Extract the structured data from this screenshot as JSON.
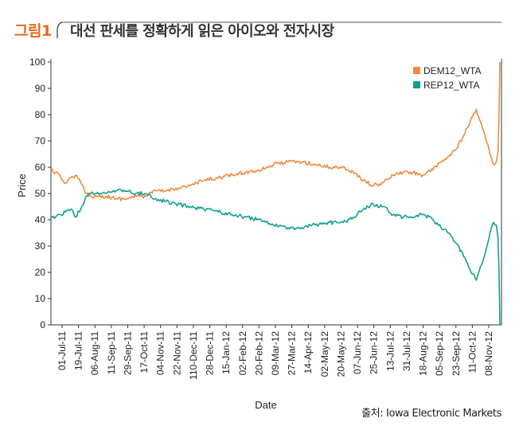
{
  "header": {
    "figure_label": "그림1",
    "title": "대선 판세를 정확하게 읽은 아이오와 전자시장"
  },
  "source": "출처: Iowa Electronic Markets",
  "colors": {
    "dem": "#f08a3e",
    "rep": "#12a08e",
    "accent": "#e8681f"
  },
  "chart_data": {
    "type": "line",
    "title": "",
    "xlabel": "Date",
    "ylabel": "Price",
    "ylim": [
      0,
      100
    ],
    "yticks": [
      0,
      10,
      20,
      30,
      40,
      50,
      60,
      70,
      80,
      90,
      100
    ],
    "xlim": [
      "2011-07-01",
      "2012-11-08"
    ],
    "xticks": [
      "01-Jul-11",
      "19-Jul-11",
      "06-Aug-11",
      "11-Sep-11",
      "29-Sep-11",
      "17-Oct-11",
      "04-Nov-11",
      "22-Nov-11",
      "110-Dec-11",
      "28-Dec-11",
      "15-Jan-12",
      "02-Feb-12",
      "20-Feb-12",
      "09-Mar-12",
      "27-Mar-12",
      "14-Apr-12",
      "02-May-12",
      "20-May-12",
      "07-Jun-12",
      "25-Jun-12",
      "13-Jul-12",
      "31-Jul-12",
      "18-Aug-12",
      "05-Sep-12",
      "23-Sep-12",
      "11-Oct-12",
      "08-Nov-12"
    ],
    "grid": false,
    "legend": "top-right",
    "series": [
      {
        "name": "DEM12_WTA",
        "x": [
          "2011-07-01",
          "2011-07-06",
          "2011-07-12",
          "2011-07-17",
          "2011-07-23",
          "2011-07-28",
          "2011-08-03",
          "2011-08-09",
          "2011-08-14",
          "2011-08-20",
          "2011-08-31",
          "2011-09-11",
          "2011-09-22",
          "2011-10-03",
          "2011-10-14",
          "2011-10-25",
          "2011-11-05",
          "2011-11-16",
          "2011-12-02",
          "2011-12-17",
          "2012-01-02",
          "2012-01-17",
          "2012-02-01",
          "2012-02-16",
          "2012-03-03",
          "2012-03-19",
          "2012-04-03",
          "2012-04-18",
          "2012-05-04",
          "2012-05-19",
          "2012-05-30",
          "2012-06-10",
          "2012-06-21",
          "2012-07-02",
          "2012-07-13",
          "2012-07-24",
          "2012-08-04",
          "2012-08-15",
          "2012-08-26",
          "2012-09-04",
          "2012-09-12",
          "2012-09-21",
          "2012-09-29",
          "2012-10-06",
          "2012-10-13",
          "2012-10-19",
          "2012-10-24",
          "2012-10-28",
          "2012-11-01",
          "2012-11-04",
          "2012-11-06",
          "2012-11-07",
          "2012-11-08"
        ],
        "values": [
          59,
          58,
          56,
          54,
          56,
          57,
          54,
          50,
          49,
          49,
          49,
          48,
          48,
          49,
          49,
          51,
          51,
          52,
          53,
          55,
          56,
          57,
          58,
          59,
          61,
          62,
          62,
          61,
          60,
          60,
          58,
          55,
          53,
          54,
          57,
          58,
          58,
          57,
          59,
          62,
          64,
          67,
          72,
          77,
          82,
          76,
          70,
          65,
          61,
          62,
          66,
          80,
          100
        ]
      },
      {
        "name": "REP12_WTA",
        "x": [
          "2011-07-01",
          "2011-07-06",
          "2011-07-12",
          "2011-07-17",
          "2011-07-23",
          "2011-07-28",
          "2011-08-03",
          "2011-08-09",
          "2011-08-14",
          "2011-08-20",
          "2011-08-31",
          "2011-09-11",
          "2011-09-22",
          "2011-10-03",
          "2011-10-14",
          "2011-10-25",
          "2011-11-05",
          "2011-11-16",
          "2011-12-02",
          "2011-12-17",
          "2012-01-02",
          "2012-01-17",
          "2012-02-01",
          "2012-02-16",
          "2012-03-03",
          "2012-03-19",
          "2012-04-03",
          "2012-04-18",
          "2012-05-04",
          "2012-05-19",
          "2012-05-30",
          "2012-06-10",
          "2012-06-21",
          "2012-07-02",
          "2012-07-13",
          "2012-07-24",
          "2012-08-04",
          "2012-08-15",
          "2012-08-26",
          "2012-09-04",
          "2012-09-12",
          "2012-09-21",
          "2012-09-29",
          "2012-10-06",
          "2012-10-13",
          "2012-10-19",
          "2012-10-24",
          "2012-10-28",
          "2012-11-01",
          "2012-11-04",
          "2012-11-06",
          "2012-11-07",
          "2012-11-08"
        ],
        "values": [
          41,
          41,
          42,
          43,
          44,
          41,
          44,
          49,
          50,
          50,
          50,
          51,
          51,
          50,
          50,
          48,
          47,
          46,
          45,
          44,
          43,
          42,
          41,
          40,
          38,
          37,
          37,
          38,
          39,
          39,
          41,
          44,
          46,
          45,
          42,
          41,
          41,
          42,
          40,
          37,
          35,
          31,
          26,
          21,
          17,
          23,
          29,
          35,
          39,
          38,
          33,
          20,
          0
        ]
      }
    ]
  }
}
